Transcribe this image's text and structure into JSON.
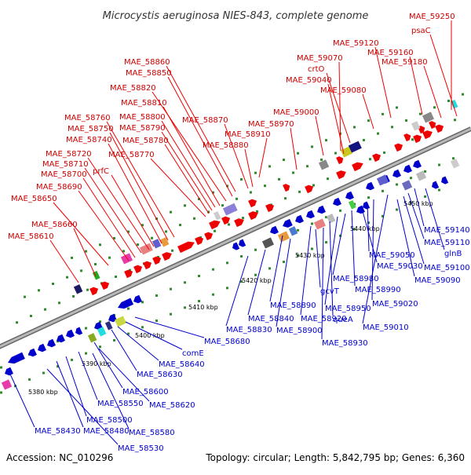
{
  "title": "Microcystis aeruginosa NIES-843, complete genome",
  "footer": {
    "accession": "Accession: NC_010296",
    "summary": "Topology: circular; Length: 5,842,795 bp; Genes: 6,360"
  },
  "colors": {
    "forward": "#ee0000",
    "reverse": "#0000cc",
    "forward_label": "#cc0000",
    "reverse_label": "#0000cc",
    "backbone": "#999999",
    "tick": "#2e8b2e"
  },
  "scale_ticks": [
    "5380 kbp",
    "5390 kbp",
    "5400 kbp",
    "5410 kbp",
    "5420 kbp",
    "5430 kbp",
    "5440 kbp",
    "5450 kbp"
  ],
  "forward_labels": [
    "MAE_59250",
    "psaC",
    "MAE_59120",
    "MAE_59160",
    "MAE_59180",
    "MAE_59070",
    "crtO",
    "MAE_59040",
    "MAE_59080",
    "MAE_59000",
    "MAE_58970",
    "MAE_58910",
    "MAE_58860",
    "MAE_58850",
    "MAE_58820",
    "MAE_58810",
    "MAE_58800",
    "MAE_58790",
    "MAE_58780",
    "MAE_58770",
    "MAE_58870",
    "MAE_58880",
    "MAE_58760",
    "MAE_58750",
    "MAE_58740",
    "MAE_58720",
    "MAE_58710",
    "prfC",
    "MAE_58700",
    "MAE_58690",
    "MAE_58650",
    "MAE_58660",
    "MAE_58610"
  ],
  "reverse_labels": [
    "MAE_59140",
    "MAE_59110",
    "glnB",
    "MAE_59100",
    "MAE_59090",
    "MAE_59050",
    "MAE_59030",
    "MAE_58980",
    "MAE_58990",
    "MAE_59020",
    "MAE_59010",
    "gcvT",
    "MAE_58950",
    "queA",
    "MAE_58890",
    "MAE_58840",
    "MAE_58830",
    "MAE_58920",
    "MAE_58900",
    "MAE_58930",
    "MAE_58680",
    "comE",
    "MAE_58640",
    "MAE_58630",
    "MAE_58600",
    "MAE_58550",
    "MAE_58620",
    "MAE_58500",
    "MAE_58480",
    "MAE_58580",
    "MAE_58430",
    "MAE_58530"
  ]
}
